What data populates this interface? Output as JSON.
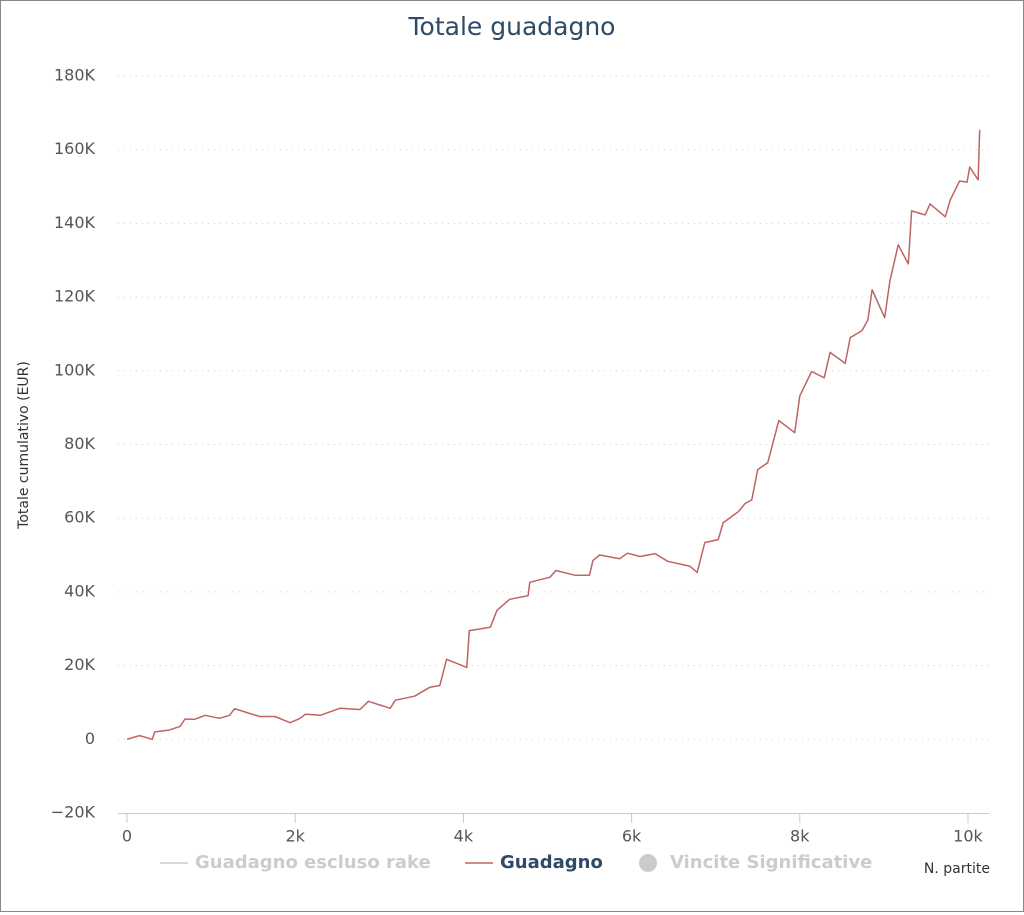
{
  "chart_data": {
    "type": "line",
    "title": "Totale guadagno",
    "ylabel": "Totale cumulativo (EUR)",
    "xlabel": "N. partite",
    "x": [
      0,
      150,
      300,
      330,
      500,
      630,
      690,
      800,
      930,
      1100,
      1220,
      1280,
      1460,
      1580,
      1760,
      1940,
      2060,
      2120,
      2300,
      2530,
      2770,
      2870,
      3130,
      3190,
      3420,
      3600,
      3720,
      3800,
      4040,
      4070,
      4320,
      4400,
      4550,
      4770,
      4790,
      5030,
      5100,
      5330,
      5500,
      5540,
      5620,
      5860,
      5950,
      6100,
      6280,
      6430,
      6690,
      6780,
      6870,
      7030,
      7090,
      7270,
      7350,
      7430,
      7500,
      7620,
      7750,
      7940,
      8000,
      8140,
      8290,
      8360,
      8540,
      8600,
      8740,
      8810,
      8860,
      9010,
      9070,
      9170,
      9290,
      9330,
      9490,
      9550,
      9730,
      9790,
      9900,
      9990,
      10020,
      10120,
      10140
    ],
    "series": [
      {
        "name": "Guadagno escluso rake",
        "color": "#cccccc",
        "symbol": "line",
        "visible": false
      },
      {
        "name": "Guadagno",
        "color": "#bf6464",
        "symbol": "line",
        "visible": true,
        "values": [
          0,
          1000,
          0,
          2000,
          2500,
          3500,
          5500,
          5400,
          6500,
          5700,
          6500,
          8300,
          7000,
          6200,
          6200,
          4500,
          5700,
          6800,
          6500,
          8400,
          8100,
          10300,
          8400,
          10600,
          11700,
          14100,
          14600,
          21700,
          19500,
          29500,
          30400,
          35000,
          38000,
          39000,
          42600,
          44000,
          45800,
          44500,
          44500,
          48500,
          50000,
          49000,
          50500,
          49600,
          50400,
          48300,
          47000,
          45300,
          53400,
          54200,
          58800,
          61800,
          64000,
          65000,
          73200,
          75100,
          86500,
          83200,
          93200,
          99800,
          98100,
          105000,
          102000,
          109000,
          110900,
          113800,
          122000,
          114400,
          124200,
          134200,
          129000,
          143400,
          142300,
          145300,
          141800,
          146400,
          151500,
          151200,
          155300,
          151800,
          165400
        ]
      },
      {
        "name": "Vincite Significative",
        "color": "#cccccc",
        "symbol": "circle",
        "visible": false
      }
    ],
    "xlim": [
      0,
      10250
    ],
    "xticks": [
      0,
      {
        "value": 2000,
        "label": "2k"
      },
      {
        "value": 4000,
        "label": "4k"
      },
      {
        "value": 6000,
        "label": "6k"
      },
      {
        "value": 8000,
        "label": "8k"
      },
      {
        "value": 10000,
        "label": "10k"
      }
    ],
    "ylim": [
      -20000,
      180000
    ],
    "yticks": [
      {
        "value": -20000,
        "label": "−20K"
      },
      0,
      {
        "value": 20000,
        "label": "20K"
      },
      {
        "value": 40000,
        "label": "40K"
      },
      {
        "value": 60000,
        "label": "60K"
      },
      {
        "value": 80000,
        "label": "80K"
      },
      {
        "value": 100000,
        "label": "100K"
      },
      {
        "value": 120000,
        "label": "120K"
      },
      {
        "value": 140000,
        "label": "140K"
      },
      {
        "value": 160000,
        "label": "160K"
      },
      {
        "value": 180000,
        "label": "180K"
      }
    ],
    "grid": true
  }
}
